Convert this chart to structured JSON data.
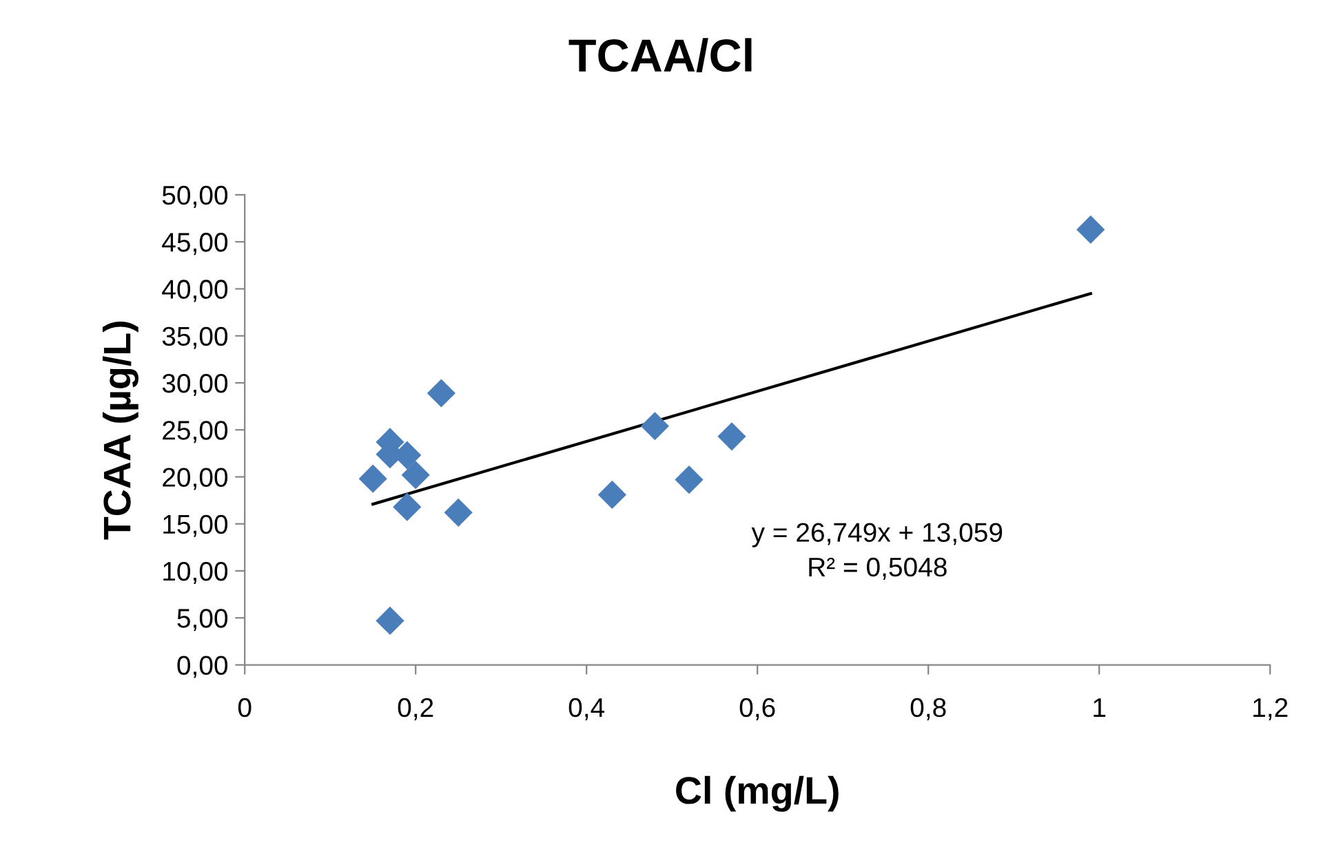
{
  "chart_data": {
    "type": "scatter",
    "title": "TCAA/Cl",
    "xlabel": "Cl (mg/L)",
    "ylabel": "TCAA (µg/L)",
    "xlim": [
      0,
      1.2
    ],
    "xticks": [
      0,
      {
        "value": 0.2,
        "label": "0,2"
      },
      {
        "value": 0.4,
        "label": "0,4"
      },
      {
        "value": 0.6,
        "label": "0,6"
      },
      {
        "value": 0.8,
        "label": "0,8"
      },
      1,
      {
        "value": 1.2,
        "label": "1,2"
      }
    ],
    "ylim": [
      0,
      50
    ],
    "yticks": [
      {
        "value": 0,
        "label": "0,00"
      },
      {
        "value": 5,
        "label": "5,00"
      },
      {
        "value": 10,
        "label": "10,00"
      },
      {
        "value": 15,
        "label": "15,00"
      },
      {
        "value": 20,
        "label": "20,00"
      },
      {
        "value": 25,
        "label": "25,00"
      },
      {
        "value": 30,
        "label": "30,00"
      },
      {
        "value": 35,
        "label": "35,00"
      },
      {
        "value": 40,
        "label": "40,00"
      },
      {
        "value": 45,
        "label": "45,00"
      },
      {
        "value": 50,
        "label": "50,00"
      }
    ],
    "grid": false,
    "legend": false,
    "series": [
      {
        "color": "#4a7ebb",
        "marker": "diamond",
        "x": [
          0.23,
          0.17,
          0.17,
          0.19,
          0.2,
          0.15,
          0.19,
          0.25,
          0.17,
          0.48,
          0.57,
          0.52,
          0.43,
          0.99
        ],
        "values": [
          28.9,
          23.7,
          22.4,
          22.3,
          20.2,
          19.8,
          16.8,
          16.2,
          4.7,
          25.4,
          24.3,
          19.7,
          18.1,
          46.3
        ]
      },
      {
        "type": "line",
        "color": "#000000",
        "marker": "none",
        "line_style": "solid",
        "x": [
          0.15,
          0.99
        ],
        "values": [
          17.1,
          39.5
        ]
      }
    ],
    "annotations": [
      "y = 26,749x + 13,059\nR² = 0,5048"
    ]
  }
}
